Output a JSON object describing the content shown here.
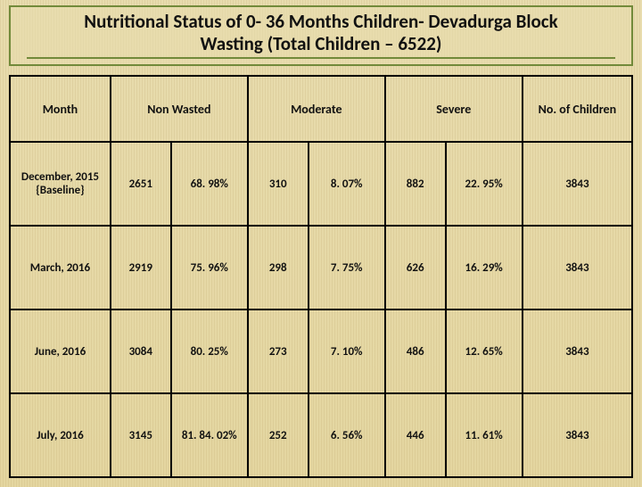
{
  "title": {
    "line1": "Nutritional Status of  0- 36 Months Children- Devadurga  Block",
    "line2": "Wasting (Total Children – 6522)",
    "title_fontsize": 21,
    "border_color": "#728a3a"
  },
  "table": {
    "type": "table",
    "background_color": "#e8dcae",
    "border_color": "#000000",
    "text_color": "#111111",
    "header_fontsize": 14,
    "cell_fontsize": 13,
    "columns": [
      {
        "key": "month",
        "label": "Month",
        "width": 110,
        "align": "center"
      },
      {
        "key": "nw",
        "label": "Non Wasted",
        "span": 2,
        "sub": [
          "n",
          "pct"
        ],
        "width_n": 66,
        "width_pct": 84
      },
      {
        "key": "md",
        "label": "Moderate",
        "span": 2,
        "sub": [
          "n",
          "pct"
        ],
        "width_n": 66,
        "width_pct": 84
      },
      {
        "key": "sv",
        "label": "Severe",
        "span": 2,
        "sub": [
          "n",
          "pct"
        ],
        "width_n": 66,
        "width_pct": 84
      },
      {
        "key": "total",
        "label": "No. of Children",
        "width": 120,
        "align": "center"
      }
    ],
    "rows": [
      {
        "month": "December, 2015 {Baseline}",
        "nw_n": "2651",
        "nw_pct": "68. 98%",
        "md_n": "310",
        "md_pct": "8. 07%",
        "sv_n": "882",
        "sv_pct": "22. 95%",
        "total": "3843"
      },
      {
        "month": "March, 2016",
        "nw_n": "2919",
        "nw_pct": "75. 96%",
        "md_n": "298",
        "md_pct": "7. 75%",
        "sv_n": "626",
        "sv_pct": "16. 29%",
        "total": "3843"
      },
      {
        "month": "June, 2016",
        "nw_n": "3084",
        "nw_pct": "80. 25%",
        "md_n": "273",
        "md_pct": "7. 10%",
        "sv_n": "486",
        "sv_pct": "12. 65%",
        "total": "3843"
      },
      {
        "month": "July, 2016",
        "nw_n": "3145",
        "nw_pct": "81. 84. 02%",
        "md_n": "252",
        "md_pct": "6. 56%",
        "sv_n": "446",
        "sv_pct": "11. 61%",
        "total": "3843"
      }
    ]
  }
}
